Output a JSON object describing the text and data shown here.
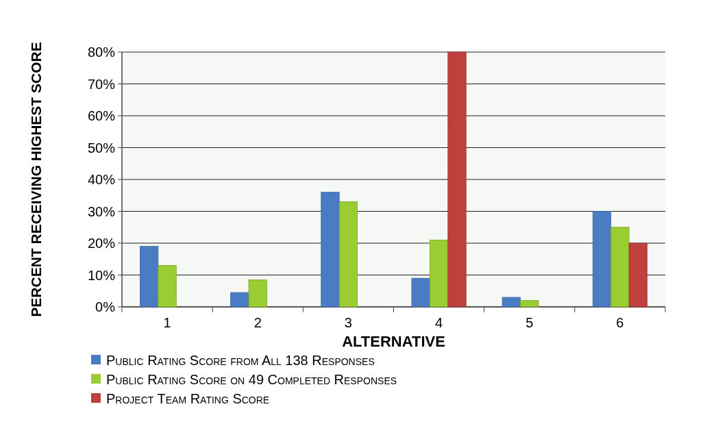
{
  "chart_data": {
    "type": "bar",
    "xlabel": "ALTERNATIVE",
    "ylabel": "PERCENT RECEIVING HIGHEST SCORE",
    "categories": [
      "1",
      "2",
      "3",
      "4",
      "5",
      "6"
    ],
    "series": [
      {
        "name": "Public Rating Score from All 138 Responses",
        "color": "#4a7cc4",
        "values": [
          19,
          4.5,
          36,
          9,
          3,
          30
        ]
      },
      {
        "name": "Public Rating Score on 49 Completed Responses",
        "color": "#9acd32",
        "values": [
          13,
          8.5,
          33,
          21,
          2,
          25
        ]
      },
      {
        "name": "Project Team Rating Score",
        "color": "#c0403e",
        "values": [
          0,
          0,
          0,
          80,
          0,
          20
        ]
      }
    ],
    "ylim": [
      0,
      80
    ],
    "yticks": [
      {
        "value": 0,
        "label": "0%"
      },
      {
        "value": 10,
        "label": "10%"
      },
      {
        "value": 20,
        "label": "20%"
      },
      {
        "value": 30,
        "label": "30%"
      },
      {
        "value": 40,
        "label": "40%"
      },
      {
        "value": 50,
        "label": "50%"
      },
      {
        "value": 60,
        "label": "60%"
      },
      {
        "value": 70,
        "label": "70%"
      },
      {
        "value": 80,
        "label": "80%"
      }
    ],
    "grid": "y",
    "legend": "bottom"
  }
}
